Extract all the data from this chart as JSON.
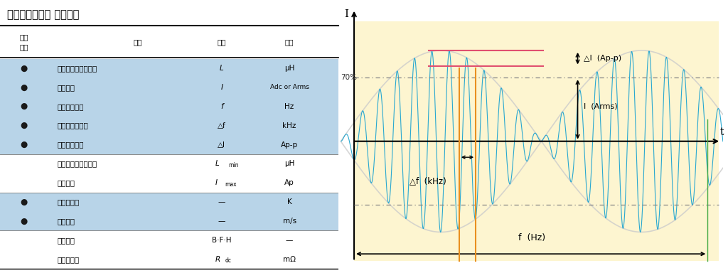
{
  "title": "リアクトル製作 仕様項目",
  "rows": [
    {
      "bullet": true,
      "item": "定格インダクタンス",
      "symbol": "L",
      "unit": "μH",
      "bg": "light"
    },
    {
      "bullet": true,
      "item": "定格電流",
      "symbol": "I",
      "unit": "Adc or Arms",
      "bg": "light"
    },
    {
      "bullet": true,
      "item": "ベース周波数",
      "symbol": "f",
      "unit": "Hz",
      "bg": "light"
    },
    {
      "bullet": true,
      "item": "キャリア周波数",
      "symbol": "△f",
      "unit": "kHz",
      "bg": "light"
    },
    {
      "bullet": true,
      "item": "キャリア電流",
      "symbol": "△I",
      "unit": "Ap-p",
      "bg": "light"
    },
    {
      "bullet": false,
      "item": "最小インダクタンス",
      "symbol": "Lmin",
      "unit": "μH",
      "bg": "white"
    },
    {
      "bullet": false,
      "item": "最大電流",
      "symbol": "Imax",
      "unit": "Ap",
      "bg": "white"
    },
    {
      "bullet": true,
      "item": "温度上昇値",
      "symbol": "—",
      "unit": "K",
      "bg": "light"
    },
    {
      "bullet": true,
      "item": "冷却風速",
      "symbol": "—",
      "unit": "m/s",
      "bg": "light"
    },
    {
      "bullet": false,
      "item": "絶縁階級",
      "symbol": "B·F·H",
      "unit": "—",
      "bg": "white"
    },
    {
      "bullet": false,
      "item": "直流抗抗値",
      "symbol": "Rdc",
      "unit": "mΩ",
      "bg": "white"
    }
  ],
  "light_blue": "#b8d4e8",
  "white": "#ffffff",
  "bullet_char": "●",
  "bg_diagram": "#fdf5d0",
  "wave_color": "#29a8d0",
  "envelope_color": "#aaaaaa",
  "orange_line": "#e89020",
  "pink_line": "#e05070",
  "green_line": "#44aa44"
}
